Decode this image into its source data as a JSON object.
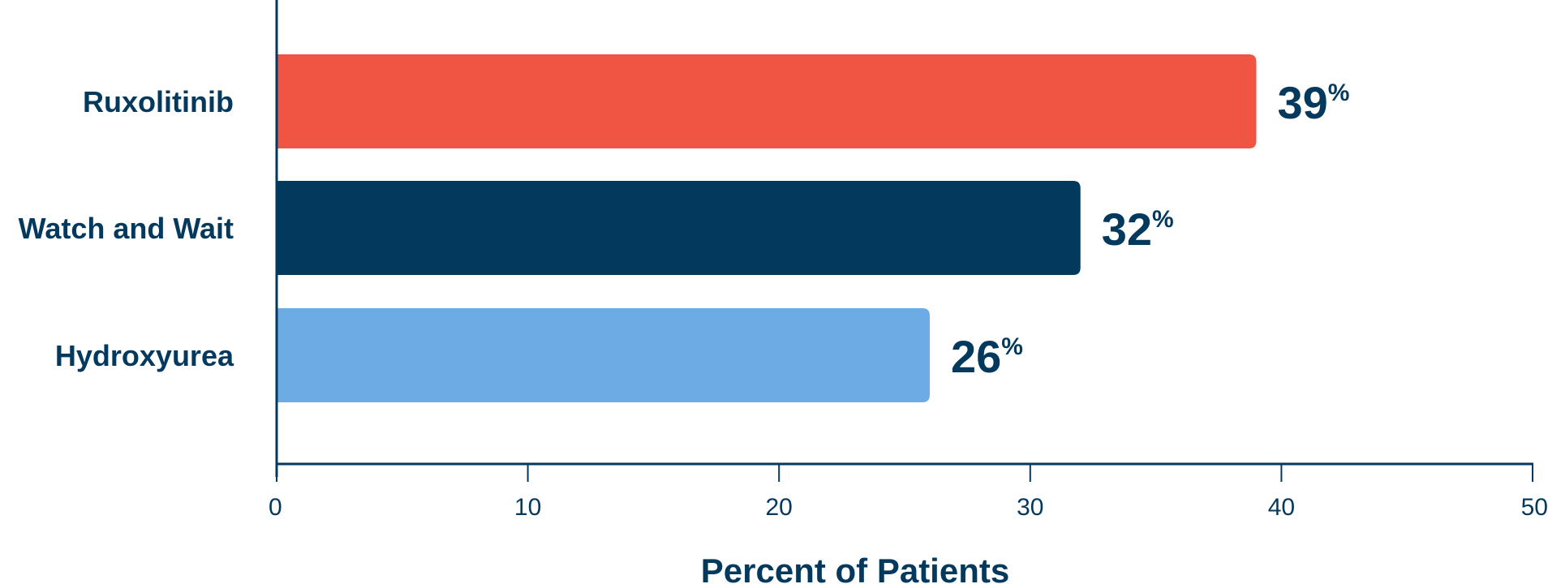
{
  "chart_data": {
    "type": "bar",
    "orientation": "horizontal",
    "categories": [
      "Ruxolitinib",
      "Watch and Wait",
      "Hydroxyurea"
    ],
    "values": [
      39,
      32,
      26
    ],
    "value_labels": [
      "39",
      "32",
      "26"
    ],
    "value_suffix": "%",
    "bar_colors": [
      "#EF5542",
      "#04395E",
      "#6CABE3"
    ],
    "text_color": "#04395E",
    "xlabel": "Percent of Patients",
    "ylabel": "",
    "title": "",
    "xlim": [
      0,
      50
    ],
    "xticks": [
      0,
      10,
      20,
      30,
      40,
      50
    ],
    "xtick_labels": [
      "0",
      "10",
      "20",
      "30",
      "40",
      "50"
    ],
    "grid": false,
    "legend": "none"
  }
}
